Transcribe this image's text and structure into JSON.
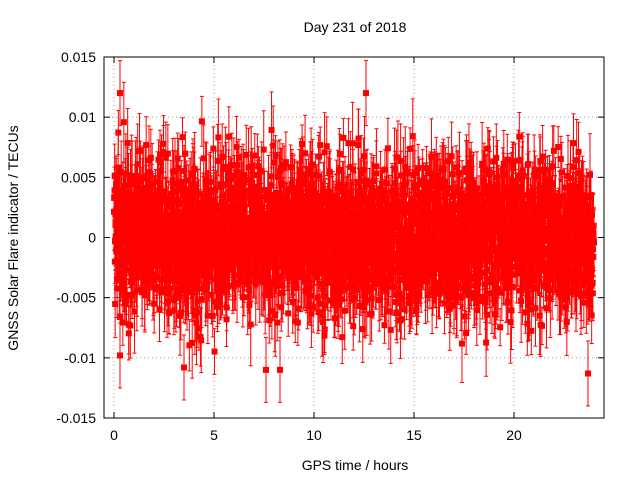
{
  "chart_data": {
    "type": "scatter",
    "title": "Day 231 of 2018",
    "xlabel": "GPS time / hours",
    "ylabel": "GNSS Solar Flare indicator / TECUs",
    "xlim": [
      -0.5,
      24.5
    ],
    "ylim": [
      -0.015,
      0.015
    ],
    "xticks": [
      0,
      5,
      10,
      15,
      20
    ],
    "xtick_labels": [
      "0",
      "5",
      "10",
      "15",
      "20"
    ],
    "yticks": [
      -0.015,
      -0.01,
      -0.005,
      0,
      0.005,
      0.01,
      0.015
    ],
    "ytick_labels": [
      "-0.015",
      "-0.01",
      "-0.005",
      "0",
      "0.005",
      "0.01",
      "0.015"
    ],
    "grid": true,
    "legend": "none",
    "series": [
      {
        "name": "solar flare indicator",
        "color": "#ff0000",
        "marker": "square",
        "error_bars": true,
        "x_range": [
          0,
          24
        ],
        "typical_y_range": [
          -0.006,
          0.006
        ],
        "typical_error": 0.0025,
        "notable_points": [
          {
            "x": 0.3,
            "y": 0.012
          },
          {
            "x": 12.6,
            "y": 0.012
          },
          {
            "x": 3.5,
            "y": -0.0108
          },
          {
            "x": 23.7,
            "y": -0.0113
          },
          {
            "x": 7.6,
            "y": -0.011
          },
          {
            "x": 8.3,
            "y": -0.011
          },
          {
            "x": 0.3,
            "y": -0.0098
          }
        ]
      }
    ]
  }
}
